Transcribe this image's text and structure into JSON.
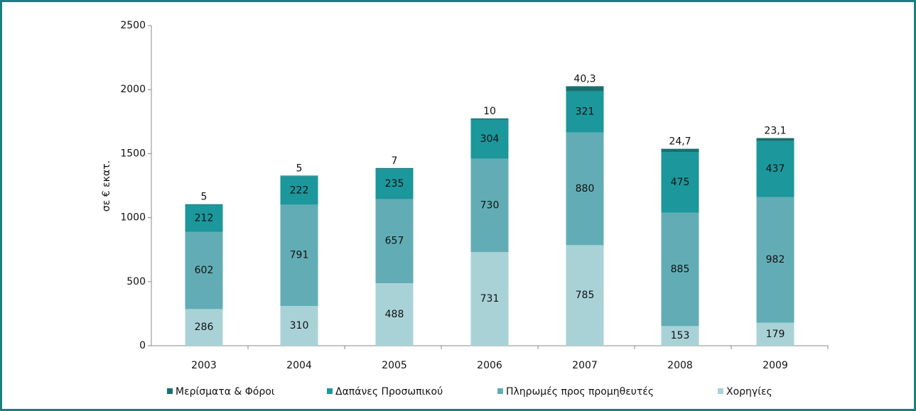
{
  "chart_data": {
    "type": "stacked_bar",
    "y_label": "σε € εκατ.",
    "categories": [
      "2003",
      "2004",
      "2005",
      "2006",
      "2007",
      "2008",
      "2009"
    ],
    "series": [
      {
        "name": "Χορηγίες",
        "color": "#a9d2d7",
        "values": [
          286,
          310,
          488,
          731,
          785,
          153,
          179
        ]
      },
      {
        "name": "Πληρωμές προς προμηθευτές",
        "color": "#62adb5",
        "values": [
          602,
          791,
          657,
          730,
          880,
          885,
          982
        ]
      },
      {
        "name": "Δαπάνες Προσωπικού",
        "color": "#1c979c",
        "values": [
          212,
          222,
          235,
          304,
          321,
          475,
          437
        ]
      },
      {
        "name": "Μερίσματα & Φόροι",
        "color": "#17706f",
        "values": [
          5,
          5,
          7,
          10,
          40.3,
          24.7,
          23.1
        ],
        "value_labels": [
          "5",
          "5",
          "7",
          "10",
          "40,3",
          "24,7",
          "23,1"
        ]
      }
    ],
    "ylim": [
      0,
      2500
    ],
    "yticks": [
      0,
      500,
      1000,
      1500,
      2000,
      2500
    ],
    "grid": false
  }
}
